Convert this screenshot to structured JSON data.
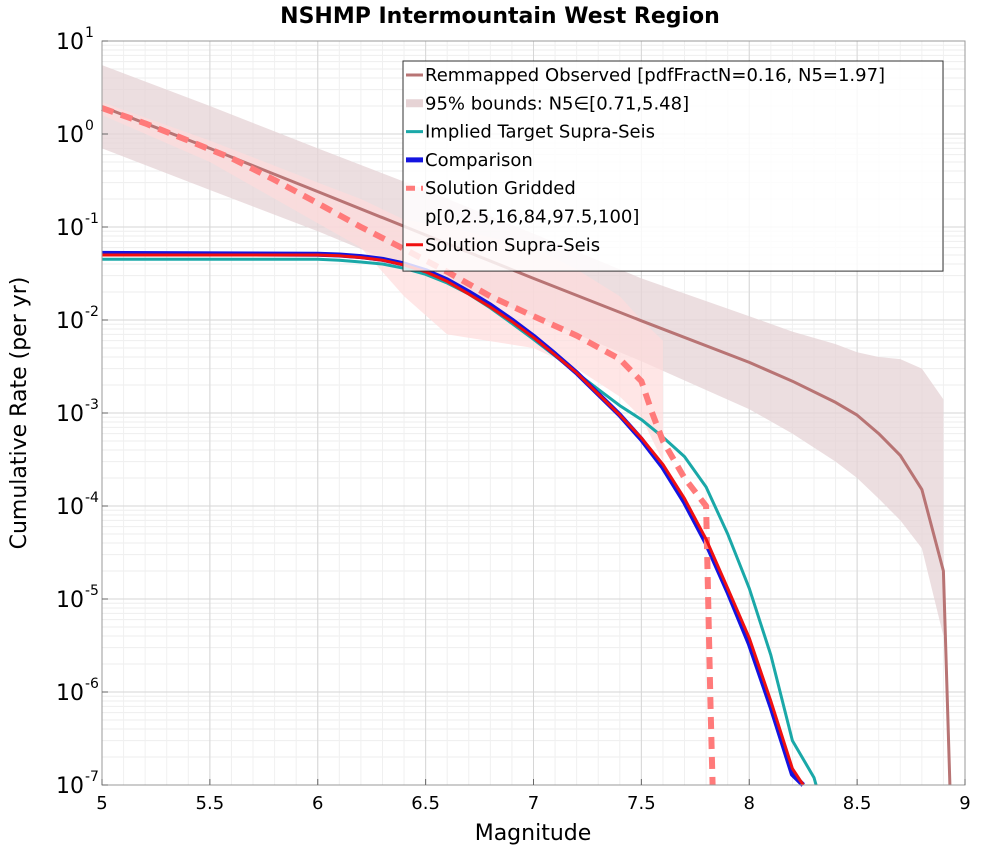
{
  "chart_data": {
    "type": "line",
    "title": "NSHMP Intermountain West Region",
    "xlabel": "Magnitude",
    "ylabel": "Cumulative Rate (per yr)",
    "xlim": [
      5,
      9
    ],
    "ylim": [
      1e-07,
      10
    ],
    "yscale": "log",
    "grid": true,
    "legend_position": "top-right",
    "x_ticks": [
      5,
      5.5,
      6,
      6.5,
      7,
      7.5,
      8,
      8.5,
      9
    ],
    "x_tick_labels": [
      "5",
      "5.5",
      "6",
      "6.5",
      "7",
      "7.5",
      "8",
      "8.5",
      "9"
    ],
    "y_ticks": [
      {
        "value": 10.0,
        "base": "10",
        "exp": "1"
      },
      {
        "value": 1.0,
        "base": "10",
        "exp": "0"
      },
      {
        "value": 0.1,
        "base": "10",
        "exp": "-1"
      },
      {
        "value": 0.01,
        "base": "10",
        "exp": "-2"
      },
      {
        "value": 0.001,
        "base": "10",
        "exp": "-3"
      },
      {
        "value": 0.0001,
        "base": "10",
        "exp": "-4"
      },
      {
        "value": 1e-05,
        "base": "10",
        "exp": "-5"
      },
      {
        "value": 1e-06,
        "base": "10",
        "exp": "-6"
      },
      {
        "value": 1e-07,
        "base": "10",
        "exp": "-7"
      }
    ],
    "bands": [
      {
        "name": "95% bounds: N5∈[0.71,5.48]",
        "color": "#e6d3d5",
        "x": [
          5.0,
          5.5,
          6.0,
          6.5,
          7.0,
          7.5,
          8.0,
          8.2,
          8.4,
          8.5,
          8.6,
          8.7,
          8.8,
          8.9
        ],
        "lower": [
          0.7,
          0.25,
          0.09,
          0.03,
          0.011,
          0.0036,
          0.0011,
          0.0006,
          0.0003,
          0.0002,
          0.00012,
          7e-05,
          3.5e-05,
          4e-06
        ],
        "upper": [
          5.5,
          2.0,
          0.7,
          0.25,
          0.085,
          0.028,
          0.011,
          0.0075,
          0.0055,
          0.0045,
          0.004,
          0.0038,
          0.003,
          0.0014
        ]
      },
      {
        "name": "p[0,2.5,16,84,97.5,100]",
        "color": "#ffdcdc",
        "x": [
          5.0,
          5.5,
          6.0,
          6.2,
          6.4,
          6.6,
          7.0,
          7.2,
          7.4,
          7.5,
          7.6
        ],
        "lower": [
          1.6,
          0.5,
          0.11,
          0.06,
          0.018,
          0.007,
          0.005,
          0.003,
          0.0015,
          0.0009,
          0.0003
        ],
        "upper": [
          2.2,
          0.85,
          0.3,
          0.2,
          0.12,
          0.1,
          0.06,
          0.035,
          0.018,
          0.01,
          0.006
        ]
      }
    ],
    "series": [
      {
        "name": "Remmapped Observed [pdfFractN=0.16, N5=1.97]",
        "color": "#b87474",
        "width": 3,
        "dash": "",
        "x": [
          5.0,
          5.5,
          6.0,
          6.5,
          7.0,
          7.5,
          8.0,
          8.2,
          8.4,
          8.5,
          8.6,
          8.7,
          8.8,
          8.9,
          8.93
        ],
        "y": [
          1.97,
          0.7,
          0.24,
          0.082,
          0.028,
          0.0098,
          0.0035,
          0.0022,
          0.0013,
          0.00095,
          0.0006,
          0.00035,
          0.00015,
          2e-05,
          1e-07
        ]
      },
      {
        "name": "Implied Target Supra-Seis",
        "color": "#1aa8a8",
        "width": 3,
        "dash": "",
        "x": [
          5.0,
          6.0,
          6.1,
          6.2,
          6.3,
          6.4,
          6.5,
          6.6,
          6.7,
          6.8,
          6.9,
          7.0,
          7.1,
          7.2,
          7.3,
          7.4,
          7.5,
          7.6,
          7.7,
          7.8,
          7.9,
          8.0,
          8.1,
          8.2,
          8.3,
          8.31
        ],
        "y": [
          0.045,
          0.045,
          0.044,
          0.042,
          0.04,
          0.036,
          0.031,
          0.025,
          0.019,
          0.0135,
          0.0092,
          0.0062,
          0.0041,
          0.0027,
          0.0018,
          0.0012,
          0.00085,
          0.00055,
          0.00034,
          0.00016,
          5e-05,
          1.3e-05,
          2.5e-06,
          3e-07,
          1.2e-07,
          1e-07
        ]
      },
      {
        "name": "Comparison",
        "color": "#1414e0",
        "width": 5,
        "dash": "",
        "x": [
          5.0,
          6.0,
          6.1,
          6.2,
          6.3,
          6.4,
          6.5,
          6.6,
          6.7,
          6.8,
          6.9,
          7.0,
          7.1,
          7.2,
          7.3,
          7.4,
          7.5,
          7.6,
          7.7,
          7.8,
          7.9,
          8.0,
          8.1,
          8.2,
          8.25
        ],
        "y": [
          0.052,
          0.051,
          0.05,
          0.048,
          0.045,
          0.04,
          0.034,
          0.027,
          0.02,
          0.0145,
          0.01,
          0.0067,
          0.0043,
          0.0027,
          0.0016,
          0.00095,
          0.00052,
          0.00026,
          0.00011,
          4e-05,
          1.2e-05,
          3.3e-06,
          7e-07,
          1.3e-07,
          1e-07
        ]
      },
      {
        "name": "Solution Gridded",
        "color": "#ff7a7a",
        "width": 6,
        "dash": "12,8",
        "x": [
          5.0,
          5.2,
          5.4,
          5.6,
          5.8,
          6.0,
          6.2,
          6.4,
          6.6,
          6.8,
          7.0,
          7.2,
          7.4,
          7.5,
          7.55,
          7.6,
          7.7,
          7.8,
          7.82,
          7.83
        ],
        "y": [
          1.9,
          1.3,
          0.85,
          0.55,
          0.32,
          0.18,
          0.1,
          0.058,
          0.033,
          0.018,
          0.011,
          0.0068,
          0.0038,
          0.0022,
          0.001,
          0.0005,
          0.0002,
          0.0001,
          8e-07,
          1e-07
        ]
      },
      {
        "name": "Solution Supra-Seis",
        "color": "#f01010",
        "width": 3,
        "dash": "",
        "x": [
          5.0,
          6.0,
          6.1,
          6.2,
          6.3,
          6.4,
          6.5,
          6.6,
          6.7,
          6.8,
          6.9,
          7.0,
          7.1,
          7.2,
          7.3,
          7.4,
          7.5,
          7.6,
          7.7,
          7.8,
          7.9,
          8.0,
          8.1,
          8.2,
          8.25
        ],
        "y": [
          0.05,
          0.05,
          0.049,
          0.047,
          0.044,
          0.039,
          0.033,
          0.026,
          0.019,
          0.0138,
          0.0096,
          0.0065,
          0.0042,
          0.0027,
          0.0016,
          0.00095,
          0.00054,
          0.00028,
          0.00012,
          4.4e-05,
          1.3e-05,
          3.8e-06,
          8e-07,
          1.5e-07,
          1e-07
        ]
      }
    ],
    "legend": [
      {
        "label": "Remmapped Observed [pdfFractN=0.16, N5=1.97]",
        "color": "#b87474",
        "kind": "line",
        "width": 3,
        "dash": ""
      },
      {
        "label": "95% bounds: N5∈[0.71,5.48]",
        "color": "#e6d3d5",
        "kind": "band",
        "width": 8,
        "dash": ""
      },
      {
        "label": "Implied Target Supra-Seis",
        "color": "#1aa8a8",
        "kind": "line",
        "width": 3,
        "dash": ""
      },
      {
        "label": "Comparison",
        "color": "#1414e0",
        "kind": "line",
        "width": 5,
        "dash": ""
      },
      {
        "label": "Solution Gridded",
        "color": "#ff7a7a",
        "kind": "line",
        "width": 5,
        "dash": "9,6"
      },
      {
        "label": "p[0,2.5,16,84,97.5,100]",
        "color": "#ffffff",
        "kind": "none",
        "width": 0,
        "dash": ""
      },
      {
        "label": "Solution Supra-Seis",
        "color": "#f01010",
        "kind": "line",
        "width": 3,
        "dash": ""
      }
    ]
  }
}
